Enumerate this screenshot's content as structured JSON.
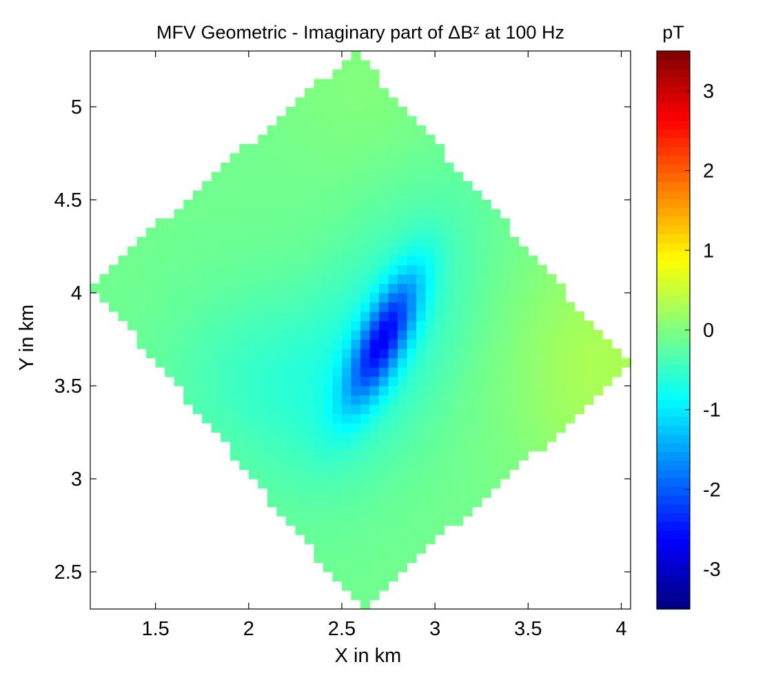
{
  "chart_data": {
    "type": "heatmap",
    "title": "MFV Geometric - Imaginary part of ΔBᶻ at 100 Hz",
    "xlabel": "X in km",
    "ylabel": "Y in km",
    "xlim": [
      1.15,
      4.05
    ],
    "ylim": [
      2.3,
      5.3
    ],
    "x_ticks": [
      "1.5",
      "2",
      "2.5",
      "3",
      "3.5",
      "4"
    ],
    "y_ticks": [
      "2.5",
      "3",
      "3.5",
      "4",
      "4.5",
      "5"
    ],
    "grid": false,
    "colorbar": {
      "unit": "pT",
      "range": [
        -3.5,
        3.5
      ],
      "ticks": [
        "3",
        "2",
        "1",
        "0",
        "-1",
        "-2",
        "-3"
      ],
      "colormap": "jet"
    },
    "domain_vertices_km": [
      [
        1.15,
        4.05
      ],
      [
        2.57,
        5.3
      ],
      [
        4.05,
        3.6
      ],
      [
        2.6,
        2.3
      ]
    ],
    "anomalies": [
      {
        "x": 2.72,
        "y": 3.75,
        "min_value": -2.0,
        "label": "negative anomaly core"
      },
      {
        "x": 3.9,
        "y": 3.6,
        "max_value": 0.4,
        "label": "weak positive edge"
      }
    ],
    "background_value": -0.1
  }
}
